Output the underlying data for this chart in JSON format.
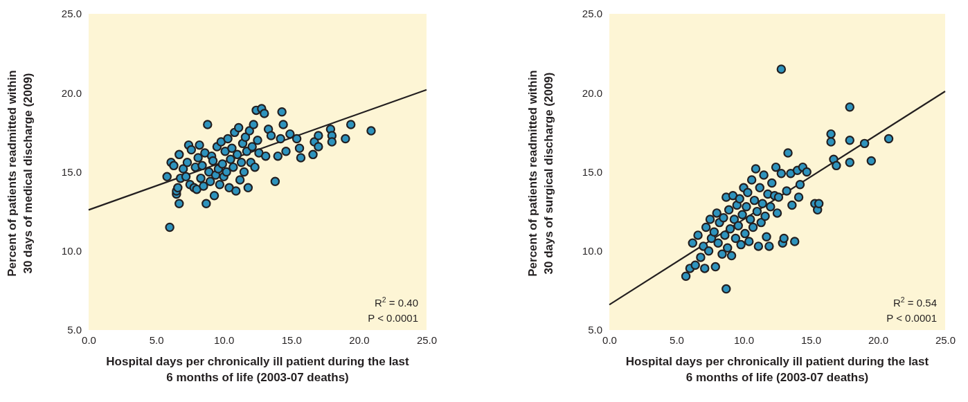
{
  "chart_data": [
    {
      "type": "scatter",
      "xlabel": "Hospital days per chronically ill patient during the last 6 months of life (2003-07 deaths)",
      "ylabel": "Percent of patients readmitted within 30 days of medical discharge (2009)",
      "xlim": [
        0,
        25
      ],
      "ylim": [
        5,
        25
      ],
      "xticks": [
        {
          "value": 0,
          "label": "0.0"
        },
        {
          "value": 5,
          "label": "5.0"
        },
        {
          "value": 10,
          "label": "10.0"
        },
        {
          "value": 15,
          "label": "15.0"
        },
        {
          "value": 20,
          "label": "20.0"
        },
        {
          "value": 25,
          "label": "25.0"
        }
      ],
      "yticks": [
        {
          "value": 5,
          "label": "5.0"
        },
        {
          "value": 10,
          "label": "10.0"
        },
        {
          "value": 15,
          "label": "15.0"
        },
        {
          "value": 20,
          "label": "20.0"
        },
        {
          "value": 25,
          "label": "25.0"
        }
      ],
      "annotations": [
        "R$^{2}$ = 0.40",
        "P < 0.0001"
      ],
      "series": [
        {
          "marker": "circle",
          "color": "#2e93bd",
          "x": [
            5.8,
            6.0,
            6.1,
            6.3,
            6.5,
            6.5,
            6.6,
            6.7,
            6.7,
            6.8,
            7.0,
            7.2,
            7.3,
            7.4,
            7.5,
            7.6,
            7.8,
            7.9,
            8.0,
            8.1,
            8.2,
            8.3,
            8.4,
            8.5,
            8.6,
            8.7,
            8.8,
            8.9,
            9.0,
            9.1,
            9.2,
            9.3,
            9.4,
            9.5,
            9.6,
            9.7,
            9.8,
            9.9,
            10.0,
            10.1,
            10.2,
            10.3,
            10.4,
            10.5,
            10.6,
            10.7,
            10.8,
            10.9,
            11.0,
            11.1,
            11.2,
            11.3,
            11.4,
            11.5,
            11.6,
            11.7,
            11.8,
            11.9,
            12.0,
            12.1,
            12.2,
            12.3,
            12.4,
            12.5,
            12.6,
            12.8,
            13.0,
            13.1,
            13.3,
            13.5,
            13.8,
            14.0,
            14.2,
            14.3,
            14.4,
            14.6,
            14.9,
            15.4,
            15.6,
            15.7,
            16.6,
            16.7,
            17.0,
            17.0,
            17.9,
            18.0,
            18.0,
            19.0,
            19.4,
            20.9
          ],
          "values": [
            14.7,
            11.5,
            15.6,
            15.4,
            13.6,
            13.8,
            14.0,
            13.0,
            16.1,
            14.6,
            15.2,
            14.7,
            15.6,
            16.7,
            14.2,
            16.4,
            14.0,
            15.3,
            13.9,
            15.9,
            16.7,
            14.6,
            15.4,
            14.1,
            16.2,
            13.0,
            18.0,
            15.0,
            14.4,
            16.0,
            15.7,
            13.5,
            14.8,
            16.6,
            15.2,
            14.2,
            16.9,
            15.5,
            14.7,
            16.3,
            15.0,
            17.1,
            14.0,
            15.8,
            16.5,
            15.3,
            17.5,
            13.8,
            16.1,
            17.8,
            14.5,
            15.6,
            16.8,
            15.0,
            17.2,
            16.3,
            14.0,
            17.6,
            15.6,
            16.6,
            18.0,
            15.3,
            18.9,
            17.0,
            16.2,
            19.0,
            18.7,
            16.0,
            17.7,
            17.3,
            14.4,
            16.0,
            17.1,
            18.8,
            18.0,
            16.3,
            17.4,
            17.1,
            16.5,
            15.9,
            16.1,
            16.9,
            16.6,
            17.3,
            17.7,
            17.3,
            16.9,
            17.1,
            18.0,
            17.6
          ]
        },
        {
          "type": "line",
          "color": "#231f20",
          "x": [
            0,
            25
          ],
          "values": [
            12.6,
            20.2
          ]
        }
      ]
    },
    {
      "type": "scatter",
      "xlabel": "Hospital days per chronically ill patient during the last 6 months of life (2003-07 deaths)",
      "ylabel": "Percent of patients readmitted within 30 days of surgical discharge (2009)",
      "xlim": [
        0,
        25
      ],
      "ylim": [
        5,
        25
      ],
      "xticks": [
        {
          "value": 0,
          "label": "0.0"
        },
        {
          "value": 5,
          "label": "5.0"
        },
        {
          "value": 10,
          "label": "10.0"
        },
        {
          "value": 15,
          "label": "15.0"
        },
        {
          "value": 20,
          "label": "20.0"
        },
        {
          "value": 25,
          "label": "25.0"
        }
      ],
      "yticks": [
        {
          "value": 5,
          "label": "5.0"
        },
        {
          "value": 10,
          "label": "10.0"
        },
        {
          "value": 15,
          "label": "15.0"
        },
        {
          "value": 20,
          "label": "20.0"
        },
        {
          "value": 25,
          "label": "25.0"
        }
      ],
      "annotations": [
        "R$^{2}$ = 0.54",
        "P < 0.0001"
      ],
      "series": [
        {
          "marker": "circle",
          "color": "#2e93bd",
          "x": [
            5.7,
            6.0,
            6.2,
            6.4,
            6.6,
            6.8,
            7.0,
            7.1,
            7.2,
            7.4,
            7.5,
            7.6,
            7.8,
            7.9,
            8.0,
            8.1,
            8.2,
            8.4,
            8.5,
            8.6,
            8.7,
            8.7,
            8.8,
            8.9,
            9.0,
            9.1,
            9.2,
            9.3,
            9.4,
            9.5,
            9.6,
            9.7,
            9.8,
            9.9,
            10.0,
            10.1,
            10.2,
            10.3,
            10.4,
            10.5,
            10.6,
            10.7,
            10.8,
            10.9,
            11.0,
            11.1,
            11.2,
            11.3,
            11.4,
            11.5,
            11.6,
            11.7,
            11.8,
            11.9,
            12.0,
            12.1,
            12.3,
            12.4,
            12.5,
            12.6,
            12.8,
            12.8,
            12.9,
            13.0,
            13.2,
            13.3,
            13.5,
            13.6,
            13.8,
            14.0,
            14.1,
            14.2,
            14.4,
            14.7,
            15.3,
            15.5,
            15.6,
            16.5,
            16.5,
            16.7,
            16.9,
            17.9,
            17.9,
            17.9,
            19.0,
            19.5,
            20.8
          ],
          "values": [
            8.4,
            8.9,
            10.5,
            9.1,
            11.0,
            9.6,
            10.3,
            8.9,
            11.5,
            10.0,
            12.0,
            10.8,
            11.2,
            9.0,
            12.4,
            10.5,
            11.8,
            9.8,
            12.1,
            11.0,
            13.4,
            7.6,
            10.2,
            12.6,
            11.4,
            9.7,
            13.5,
            12.0,
            10.8,
            12.9,
            11.6,
            13.3,
            10.4,
            12.3,
            14.0,
            11.1,
            12.8,
            13.7,
            10.6,
            12.0,
            14.5,
            11.5,
            13.2,
            15.2,
            12.5,
            10.3,
            14.0,
            11.8,
            13.0,
            14.8,
            12.2,
            10.9,
            13.6,
            10.3,
            12.8,
            14.3,
            13.5,
            15.3,
            12.4,
            13.4,
            21.5,
            14.9,
            10.5,
            10.8,
            13.8,
            16.2,
            14.9,
            12.9,
            10.6,
            15.1,
            13.4,
            14.2,
            15.3,
            15.0,
            13.0,
            12.6,
            13.0,
            17.4,
            16.9,
            15.8,
            15.4,
            19.1,
            17.0,
            15.6,
            16.8,
            15.7,
            17.1
          ]
        },
        {
          "type": "line",
          "color": "#231f20",
          "x": [
            0,
            25
          ],
          "values": [
            6.6,
            20.1
          ]
        }
      ]
    }
  ]
}
